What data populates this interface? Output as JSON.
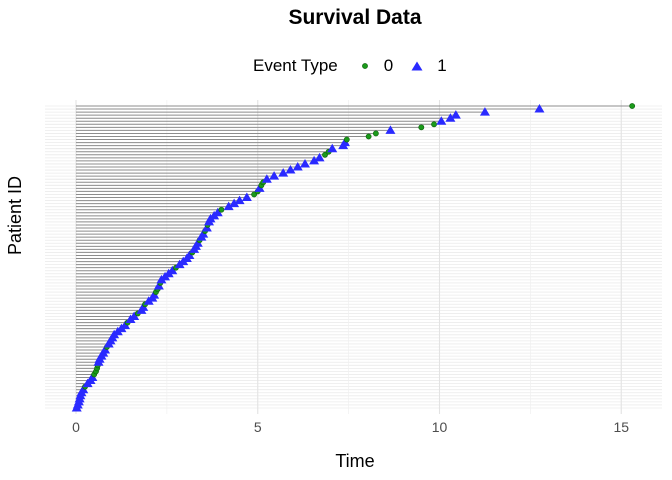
{
  "chart_data": {
    "type": "scatter",
    "title": "Survival Data",
    "xlabel": "Time",
    "ylabel": "Patient ID",
    "xlim": [
      0,
      15.5
    ],
    "xticks": [
      "0",
      "5",
      "10",
      "15"
    ],
    "grid": true,
    "legend": {
      "title": "Event Type",
      "position": "top",
      "entries": [
        {
          "label": "0",
          "shape": "circle",
          "color": "#1a9a1a"
        },
        {
          "label": "1",
          "shape": "triangle",
          "color": "#2a2aff"
        }
      ]
    },
    "segment_color": "#8c8c8c",
    "times": [
      0.02,
      0.05,
      0.08,
      0.1,
      0.12,
      0.15,
      0.2,
      0.25,
      0.32,
      0.4,
      0.45,
      0.5,
      0.55,
      0.58,
      0.6,
      0.62,
      0.65,
      0.7,
      0.75,
      0.8,
      0.85,
      0.9,
      0.95,
      1.0,
      1.05,
      1.15,
      1.25,
      1.35,
      1.42,
      1.5,
      1.6,
      1.7,
      1.8,
      1.85,
      1.9,
      2.0,
      2.1,
      2.15,
      2.2,
      2.25,
      2.28,
      2.32,
      2.35,
      2.45,
      2.55,
      2.65,
      2.75,
      2.85,
      2.95,
      3.05,
      3.12,
      3.2,
      3.25,
      3.3,
      3.35,
      3.4,
      3.45,
      3.5,
      3.55,
      3.6,
      3.62,
      3.66,
      3.7,
      3.8,
      3.9,
      4.0,
      4.2,
      4.35,
      4.5,
      4.7,
      4.9,
      5.0,
      5.05,
      5.1,
      5.15,
      5.25,
      5.45,
      5.7,
      5.9,
      6.1,
      6.3,
      6.55,
      6.7,
      6.85,
      6.95,
      7.05,
      7.35,
      7.4,
      7.45,
      8.05,
      8.25,
      8.65,
      9.5,
      9.85,
      10.05,
      10.3,
      10.45,
      11.25,
      12.75,
      15.3
    ],
    "events": [
      1,
      1,
      1,
      1,
      1,
      1,
      1,
      0,
      1,
      1,
      1,
      0,
      0,
      0,
      0,
      1,
      1,
      1,
      1,
      1,
      0,
      1,
      1,
      1,
      1,
      1,
      1,
      1,
      0,
      1,
      1,
      0,
      1,
      1,
      0,
      1,
      1,
      1,
      0,
      0,
      1,
      0,
      1,
      1,
      1,
      1,
      0,
      1,
      1,
      1,
      1,
      0,
      1,
      1,
      1,
      0,
      1,
      1,
      0,
      1,
      0,
      1,
      1,
      1,
      1,
      0,
      1,
      1,
      1,
      1,
      0,
      0,
      1,
      0,
      0,
      1,
      1,
      1,
      1,
      1,
      1,
      1,
      1,
      0,
      0,
      1,
      1,
      1,
      0,
      0,
      0,
      1,
      0,
      0,
      1,
      1,
      1,
      1,
      1,
      0
    ]
  }
}
